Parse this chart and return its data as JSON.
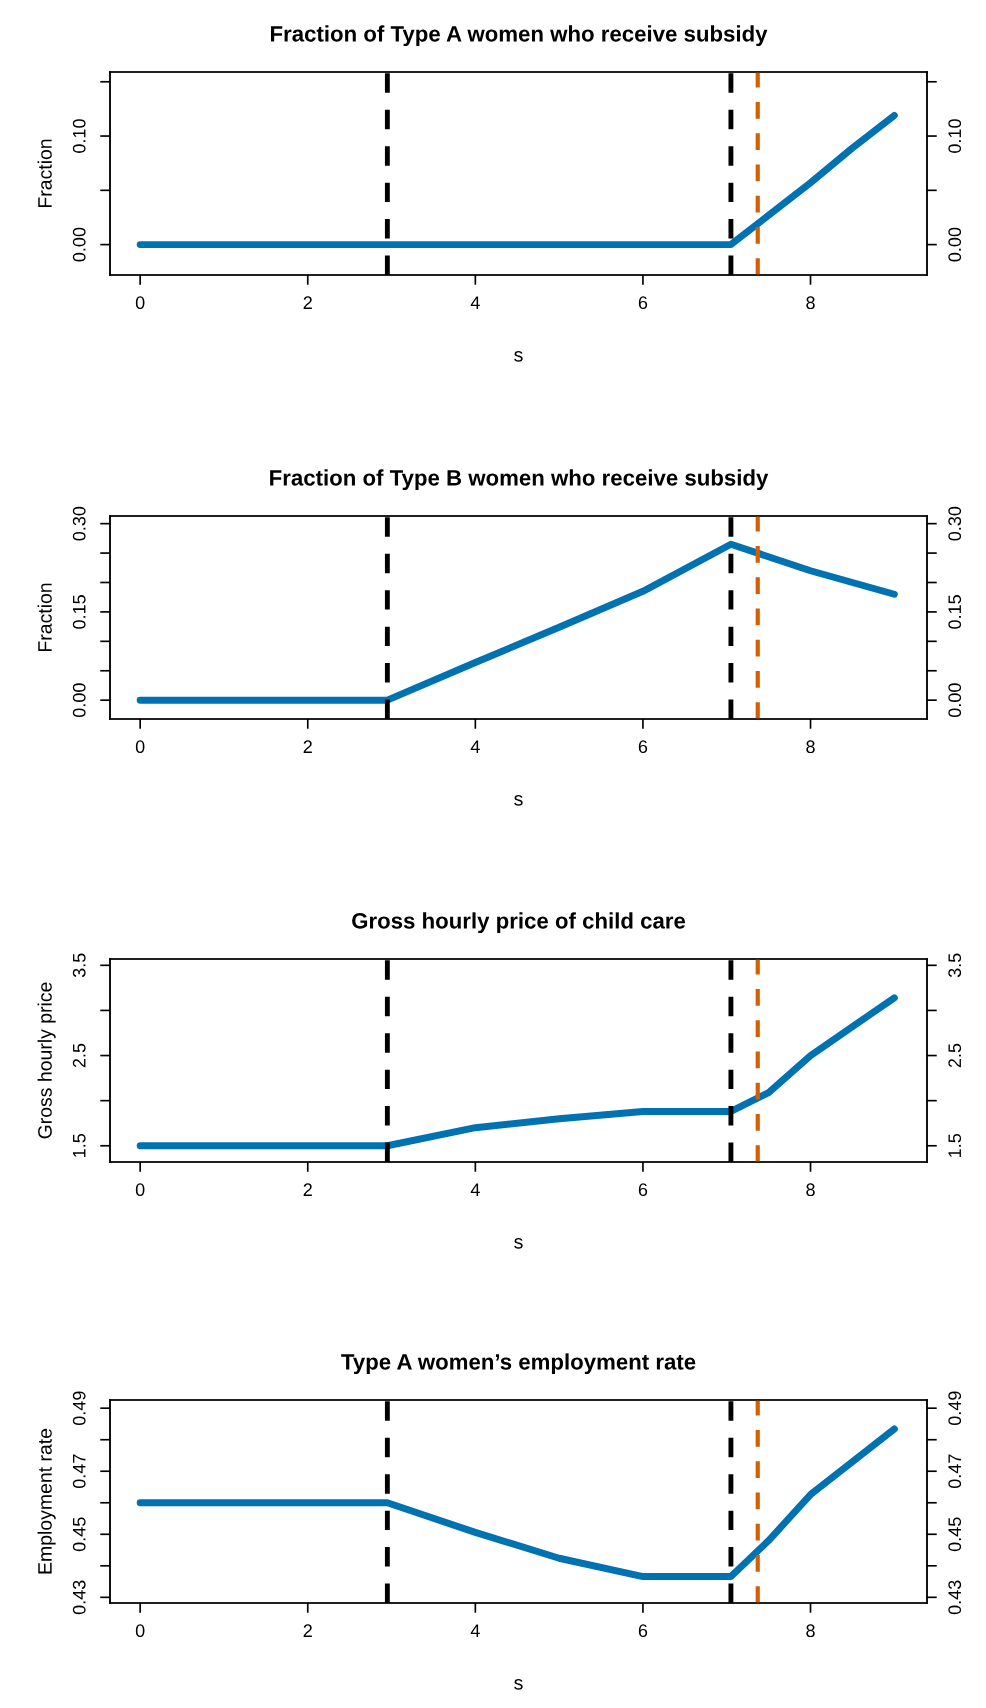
{
  "chart_data": [
    {
      "type": "line",
      "title": "Fraction of Type A women who receive subsidy",
      "xlabel": "s",
      "ylabel": "Fraction",
      "grid": false,
      "legend": false,
      "marker": "none",
      "line_style": "solid",
      "xlim": [
        -0.36,
        9.39
      ],
      "xticks": [
        0,
        2,
        4,
        6,
        8
      ],
      "ylim": [
        -0.028,
        0.159
      ],
      "yticks": [
        {
          "value": 0,
          "label": "0.00"
        },
        {
          "value": 0.05,
          "label": null
        },
        {
          "value": 0.1,
          "label": "0.10"
        },
        {
          "value": 0.15,
          "label": null
        }
      ],
      "y2lim": [
        -0.028,
        0.159
      ],
      "y2ticks": [
        {
          "value": 0,
          "label": "0.00"
        },
        {
          "value": 0.05,
          "label": null
        },
        {
          "value": 0.1,
          "label": "0.10"
        },
        {
          "value": 0.15,
          "label": null
        }
      ],
      "series": [
        {
          "color": "#0072b2",
          "x": [
            0,
            2.95,
            7.05,
            7.5,
            8,
            8.5,
            9
          ],
          "values": [
            0,
            0,
            0,
            0.027,
            0.057,
            0.089,
            0.119
          ]
        }
      ],
      "ref_lines": [
        {
          "axis": "x",
          "value": 2.95,
          "color": "#000000",
          "line_style": "dashed"
        },
        {
          "axis": "x",
          "value": 7.05,
          "color": "#000000",
          "line_style": "dashed"
        },
        {
          "axis": "x",
          "value": 7.37,
          "color": "#d55e00",
          "line_style": "dashed"
        }
      ]
    },
    {
      "type": "line",
      "title": "Fraction of Type B women who receive subsidy",
      "xlabel": "s",
      "ylabel": "Fraction",
      "grid": false,
      "legend": false,
      "marker": "none",
      "line_style": "solid",
      "xlim": [
        -0.36,
        9.39
      ],
      "xticks": [
        0,
        2,
        4,
        6,
        8
      ],
      "ylim": [
        -0.032,
        0.313
      ],
      "yticks": [
        {
          "value": 0,
          "label": "0.00"
        },
        {
          "value": 0.05,
          "label": null
        },
        {
          "value": 0.1,
          "label": null
        },
        0.15,
        {
          "value": 0.2,
          "label": null
        },
        {
          "value": 0.25,
          "label": null
        },
        {
          "value": 0.3,
          "label": "0.30"
        }
      ],
      "y2lim": [
        -0.032,
        0.313
      ],
      "y2ticks": [
        {
          "value": 0,
          "label": "0.00"
        },
        {
          "value": 0.05,
          "label": null
        },
        {
          "value": 0.1,
          "label": null
        },
        0.15,
        {
          "value": 0.2,
          "label": null
        },
        {
          "value": 0.25,
          "label": null
        },
        {
          "value": 0.3,
          "label": "0.30"
        }
      ],
      "series": [
        {
          "color": "#0072b2",
          "x": [
            0,
            2.95,
            4,
            5,
            6,
            7.05,
            8,
            9
          ],
          "values": [
            0,
            0,
            0.064,
            0.124,
            0.185,
            0.265,
            0.22,
            0.18
          ]
        }
      ],
      "ref_lines": [
        {
          "axis": "x",
          "value": 2.95,
          "color": "#000000",
          "line_style": "dashed"
        },
        {
          "axis": "x",
          "value": 7.05,
          "color": "#000000",
          "line_style": "dashed"
        },
        {
          "axis": "x",
          "value": 7.37,
          "color": "#d55e00",
          "line_style": "dashed"
        }
      ]
    },
    {
      "type": "line",
      "title": "Gross hourly price of child care",
      "xlabel": "s",
      "ylabel": "Gross hourly price",
      "grid": false,
      "legend": false,
      "marker": "none",
      "line_style": "solid",
      "xlim": [
        -0.36,
        9.39
      ],
      "xticks": [
        0,
        2,
        4,
        6,
        8
      ],
      "ylim": [
        1.32,
        3.57
      ],
      "yticks": [
        1.5,
        {
          "value": 2.0,
          "label": null
        },
        2.5,
        {
          "value": 3.0,
          "label": null
        },
        3.5
      ],
      "y2lim": [
        1.32,
        3.57
      ],
      "y2ticks": [
        1.5,
        {
          "value": 2.0,
          "label": null
        },
        2.5,
        {
          "value": 3.0,
          "label": null
        },
        3.5
      ],
      "series": [
        {
          "color": "#0072b2",
          "x": [
            0,
            2.95,
            4,
            5,
            6,
            7.05,
            7.5,
            8,
            9
          ],
          "values": [
            1.5,
            1.5,
            1.7,
            1.8,
            1.88,
            1.88,
            2.09,
            2.5,
            3.14
          ]
        }
      ],
      "ref_lines": [
        {
          "axis": "x",
          "value": 2.95,
          "color": "#000000",
          "line_style": "dashed"
        },
        {
          "axis": "x",
          "value": 7.05,
          "color": "#000000",
          "line_style": "dashed"
        },
        {
          "axis": "x",
          "value": 7.37,
          "color": "#d55e00",
          "line_style": "dashed"
        }
      ]
    },
    {
      "type": "line",
      "title": "Type A women’s employment rate",
      "xlabel": "s",
      "ylabel": "Employment rate",
      "grid": false,
      "legend": false,
      "marker": "none",
      "line_style": "solid",
      "xlim": [
        -0.36,
        9.39
      ],
      "xticks": [
        0,
        2,
        4,
        6,
        8
      ],
      "ylim": [
        0.4282,
        0.4926
      ],
      "yticks": [
        0.43,
        {
          "value": 0.44,
          "label": null
        },
        0.45,
        {
          "value": 0.46,
          "label": null
        },
        0.47,
        {
          "value": 0.48,
          "label": null
        },
        0.49
      ],
      "y2lim": [
        0.4282,
        0.4926
      ],
      "y2ticks": [
        0.43,
        {
          "value": 0.44,
          "label": null
        },
        0.45,
        {
          "value": 0.46,
          "label": null
        },
        0.47,
        {
          "value": 0.48,
          "label": null
        },
        0.49
      ],
      "series": [
        {
          "color": "#0072b2",
          "x": [
            0,
            2.95,
            4,
            5,
            6,
            7.05,
            7.5,
            8,
            9
          ],
          "values": [
            0.46,
            0.46,
            0.4506,
            0.4424,
            0.4366,
            0.4366,
            0.448,
            0.4626,
            0.4834
          ]
        }
      ],
      "ref_lines": [
        {
          "axis": "x",
          "value": 2.95,
          "color": "#000000",
          "line_style": "dashed"
        },
        {
          "axis": "x",
          "value": 7.05,
          "color": "#000000",
          "line_style": "dashed"
        },
        {
          "axis": "x",
          "value": 7.37,
          "color": "#d55e00",
          "line_style": "dashed"
        }
      ]
    }
  ]
}
